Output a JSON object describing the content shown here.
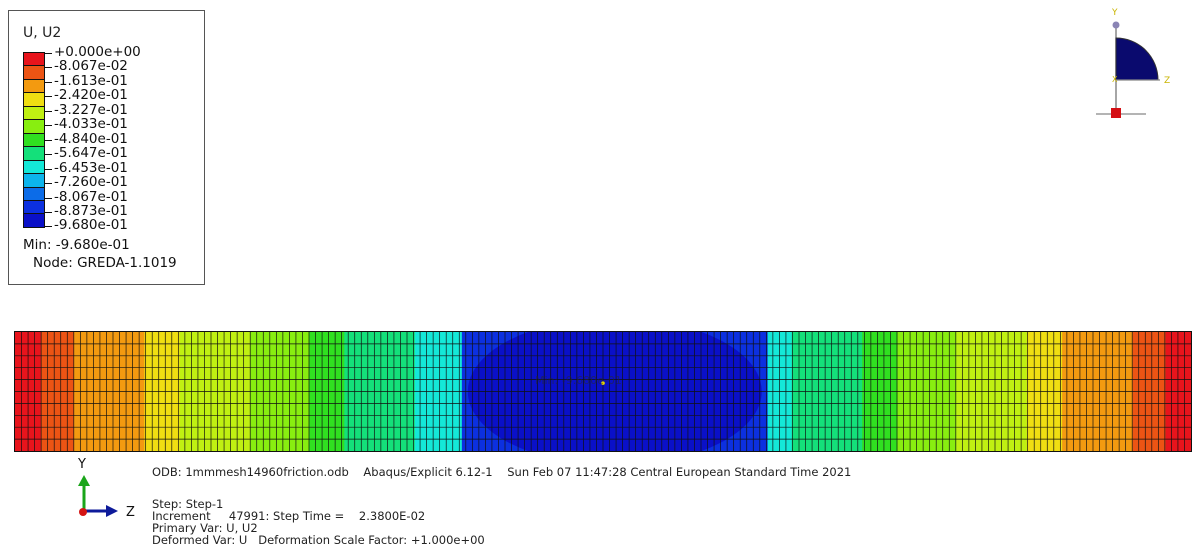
{
  "legend": {
    "title": "U, U2",
    "colors": [
      "#e8141c",
      "#ec5414",
      "#f39a10",
      "#f0de12",
      "#c0f012",
      "#88ee10",
      "#30e020",
      "#14e07a",
      "#14e8d8",
      "#0cb4ec",
      "#0c6ce8",
      "#0c30e0",
      "#0a10c8"
    ],
    "ticks": [
      "+0.000e+00",
      "-8.067e-02",
      "-1.613e-01",
      "-2.420e-01",
      "-3.227e-01",
      "-4.033e-01",
      "-4.840e-01",
      "-5.647e-01",
      "-6.453e-01",
      "-7.260e-01",
      "-8.067e-01",
      "-8.873e-01",
      "-9.680e-01"
    ],
    "min_label": "Min: -9.680e-01",
    "node_label": "Node: GREDA-1.1019"
  },
  "triad_top": {
    "y": "Y",
    "x": "X",
    "z": "Z"
  },
  "contour": {
    "probe_label": "Min: -9.680e-01",
    "band_colors": [
      "#e8141c",
      "#ec5414",
      "#f39a10",
      "#f0de12",
      "#c0f012",
      "#88ee10",
      "#30e020",
      "#14e07a",
      "#14e8d8",
      "#0cb4ec",
      "#0c6ce8",
      "#0c30e0",
      "#0a10c8"
    ]
  },
  "triad_bottom": {
    "y": "Y",
    "z": "Z"
  },
  "info": {
    "odb_line": "ODB: 1mmmesh14960friction.odb    Abaqus/Explicit 6.12-1    Sun Feb 07 11:47:28 Central European Standard Time 2021",
    "step_line": "Step: Step-1",
    "increment_line": "Increment     47991: Step Time =    2.3800E-02",
    "primary_line": "Primary Var: U, U2",
    "deformed_line": "Deformed Var: U   Deformation Scale Factor: +1.000e+00"
  }
}
